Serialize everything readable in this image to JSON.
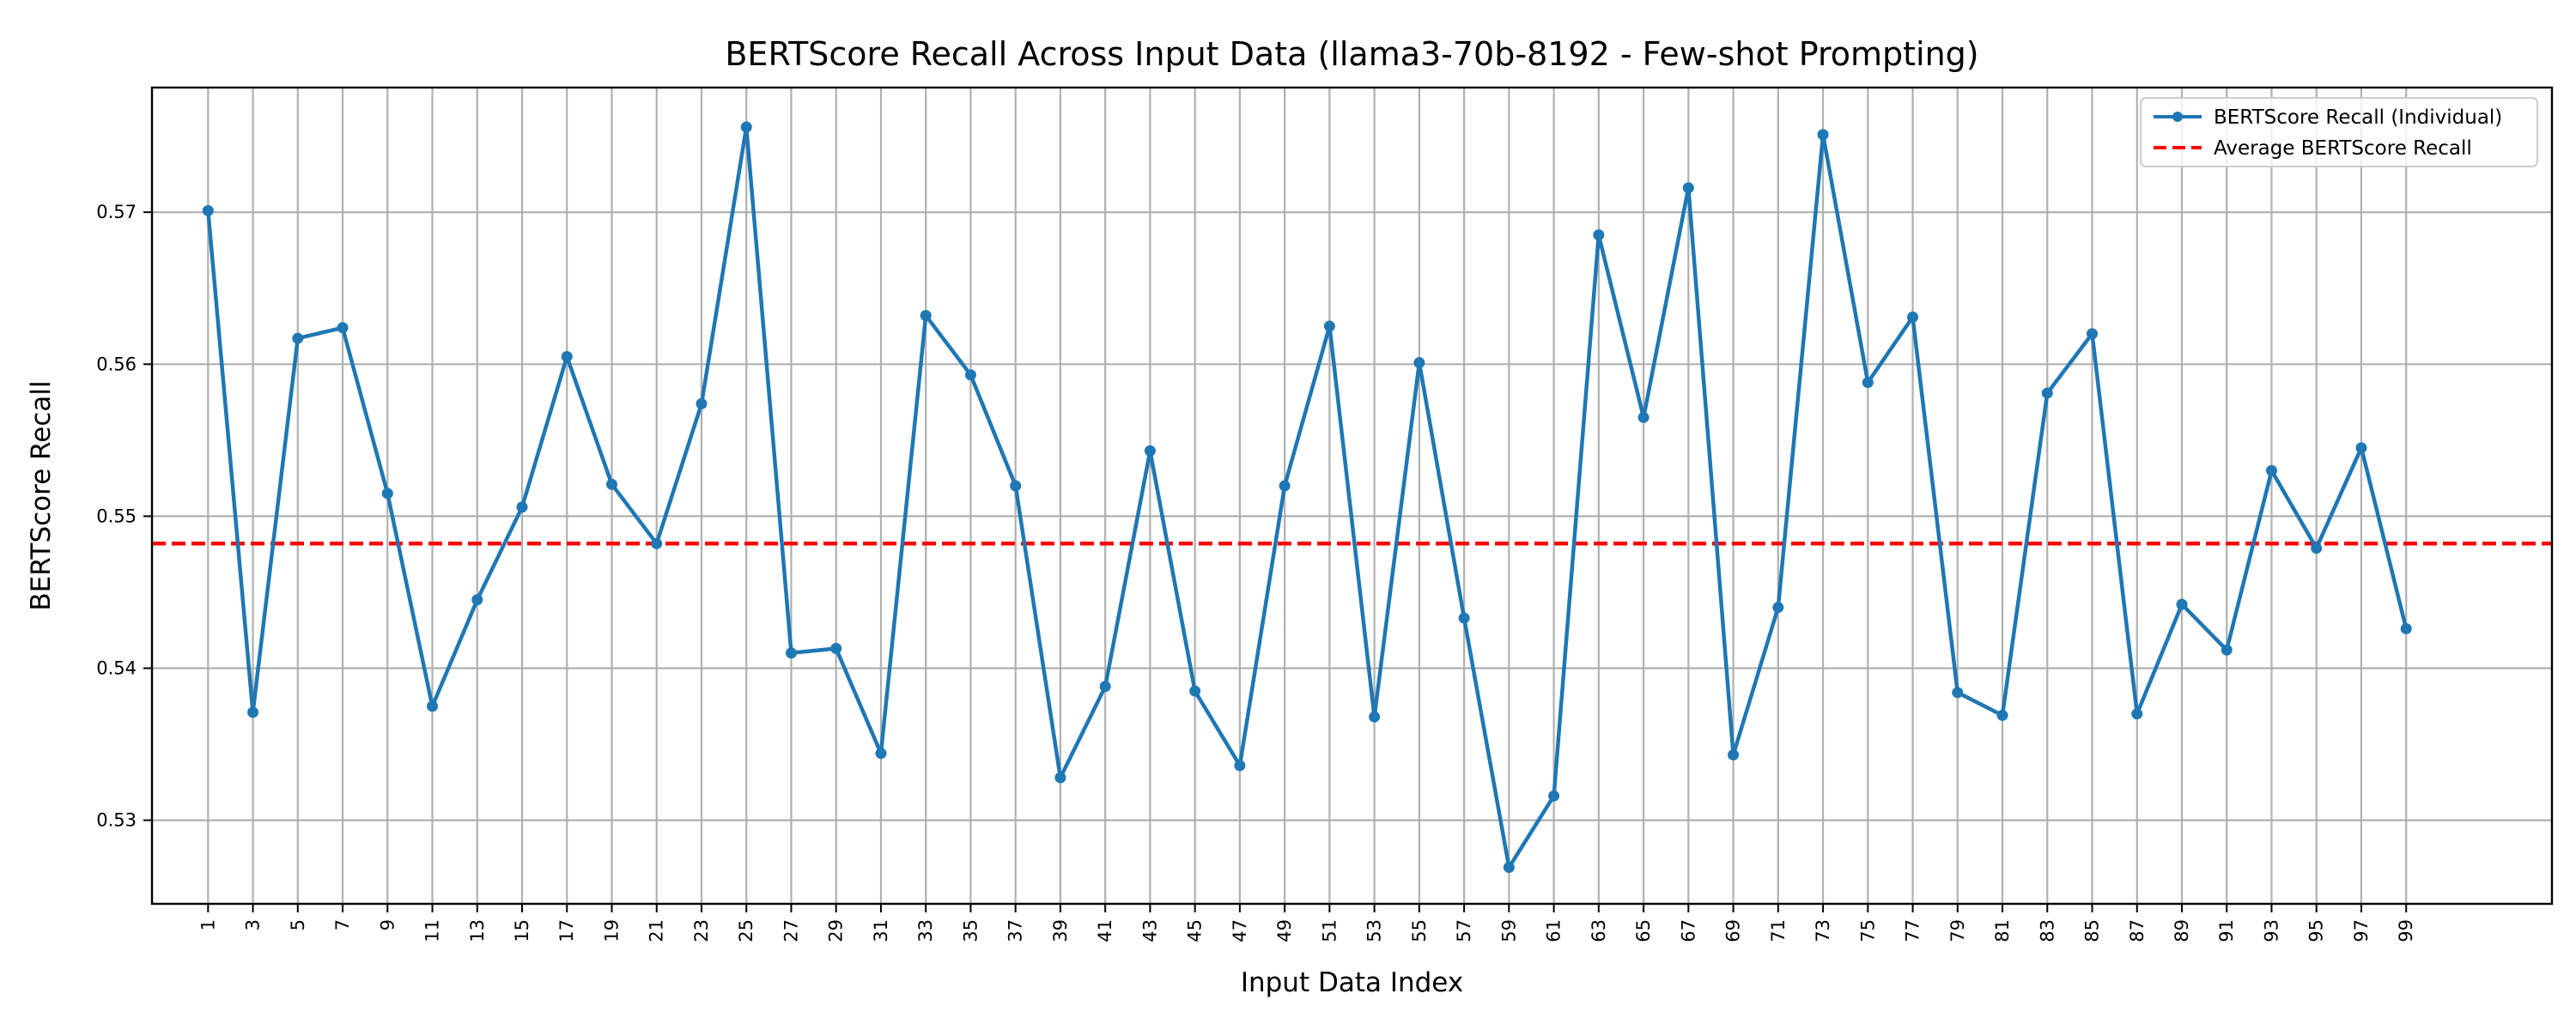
{
  "chart_data": {
    "type": "line",
    "title": "BERTScore Recall Across Input Data (llama3-70b-8192 - Few-shot Prompting)",
    "xlabel": "Input Data Index",
    "ylabel": "BERTScore Recall",
    "xlim": [
      -1.5,
      105.5
    ],
    "ylim": [
      0.5245,
      0.5782
    ],
    "x_ticks": [
      "1",
      "3",
      "5",
      "7",
      "9",
      "11",
      "13",
      "15",
      "17",
      "19",
      "21",
      "23",
      "25",
      "27",
      "29",
      "31",
      "33",
      "35",
      "37",
      "39",
      "41",
      "43",
      "45",
      "47",
      "49",
      "51",
      "53",
      "55",
      "57",
      "59",
      "61",
      "63",
      "65",
      "67",
      "69",
      "71",
      "73",
      "75",
      "77",
      "79",
      "81",
      "83",
      "85",
      "87",
      "89",
      "91",
      "93",
      "95",
      "97",
      "99"
    ],
    "y_ticks": [
      "0.53",
      "0.54",
      "0.55",
      "0.56",
      "0.57"
    ],
    "grid": true,
    "legend_position": "top-right",
    "series": [
      {
        "name": "BERTScore Recall (Individual)",
        "color": "#1f77b4",
        "x": [
          1,
          3,
          5,
          7,
          9,
          11,
          13,
          15,
          17,
          19,
          21,
          23,
          25,
          27,
          29,
          31,
          33,
          35,
          37,
          39,
          41,
          43,
          45,
          47,
          49,
          51,
          53,
          55,
          57,
          59,
          61,
          63,
          65,
          67,
          69,
          71,
          73,
          75,
          77,
          79,
          81,
          83,
          85,
          87,
          89,
          91,
          93,
          95,
          97,
          99
        ],
        "values": [
          0.5701,
          0.5371,
          0.5617,
          0.5624,
          0.5515,
          0.5375,
          0.5445,
          0.5506,
          0.5605,
          0.5521,
          0.5482,
          0.5574,
          0.5756,
          0.541,
          0.5413,
          0.5344,
          0.5632,
          0.5593,
          0.552,
          0.5328,
          0.5388,
          0.5543,
          0.5385,
          0.5336,
          0.552,
          0.5625,
          0.5368,
          0.5601,
          0.5433,
          0.5269,
          0.5316,
          0.5685,
          0.5565,
          0.5716,
          0.5343,
          0.544,
          0.5751,
          0.5588,
          0.5631,
          0.5384,
          0.5369,
          0.5581,
          0.562,
          0.537,
          0.5442,
          0.5412,
          0.553,
          0.5479,
          0.5545,
          0.5426
        ]
      },
      {
        "name": "Average BERTScore Recall",
        "color": "#ff0000",
        "value": 0.5482
      }
    ]
  }
}
